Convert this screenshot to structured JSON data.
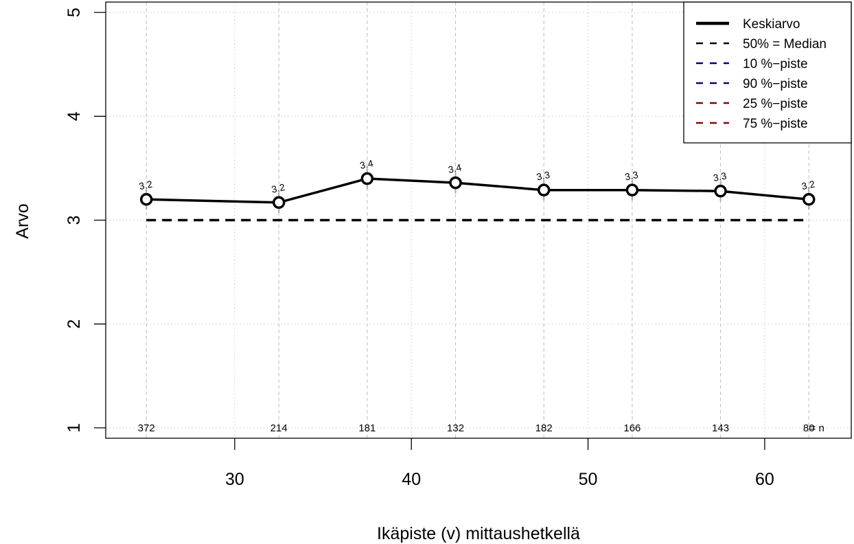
{
  "chart_data": {
    "type": "line",
    "xlabel": "Ikäpiste (v) mittaushetkellä",
    "ylabel": "Arvo",
    "xlim": [
      22.7,
      64.9
    ],
    "ylim": [
      0.9,
      5.1
    ],
    "x_ticks": [
      30,
      40,
      50,
      60
    ],
    "y_ticks": [
      1,
      2,
      3,
      4,
      5
    ],
    "grid": true,
    "legend_position": "top-right",
    "x": [
      25,
      32.5,
      37.5,
      42.5,
      47.5,
      52.5,
      57.5,
      62.5
    ],
    "series": [
      {
        "name": "Keskiarvo",
        "style": "solid",
        "color": "#000000",
        "values": [
          3.2,
          3.17,
          3.4,
          3.36,
          3.29,
          3.29,
          3.28,
          3.2
        ]
      },
      {
        "name": "50% = Median",
        "style": "dashed",
        "color": "#000000",
        "values": [
          3,
          3,
          3,
          3,
          3,
          3,
          3,
          3
        ]
      }
    ],
    "point_labels": [
      "3.2",
      "3.2",
      "3.4",
      "3.4",
      "3.3",
      "3.3",
      "3.3",
      "3.2"
    ],
    "n_values": [
      "372",
      "214",
      "181",
      "132",
      "182",
      "166",
      "143",
      "80"
    ],
    "n_suffix": "= n",
    "legend": [
      {
        "label": "Keskiarvo",
        "style": "solid",
        "color": "#000000"
      },
      {
        "label": "50% = Median",
        "style": "dashed",
        "color": "#000000"
      },
      {
        "label": "10 %−piste",
        "style": "dashed",
        "color": "#00008b"
      },
      {
        "label": "90 %−piste",
        "style": "dashed",
        "color": "#00008b"
      },
      {
        "label": "25 %−piste",
        "style": "dashed",
        "color": "#8b0000"
      },
      {
        "label": "75 %−piste",
        "style": "dashed",
        "color": "#8b0000"
      }
    ]
  }
}
